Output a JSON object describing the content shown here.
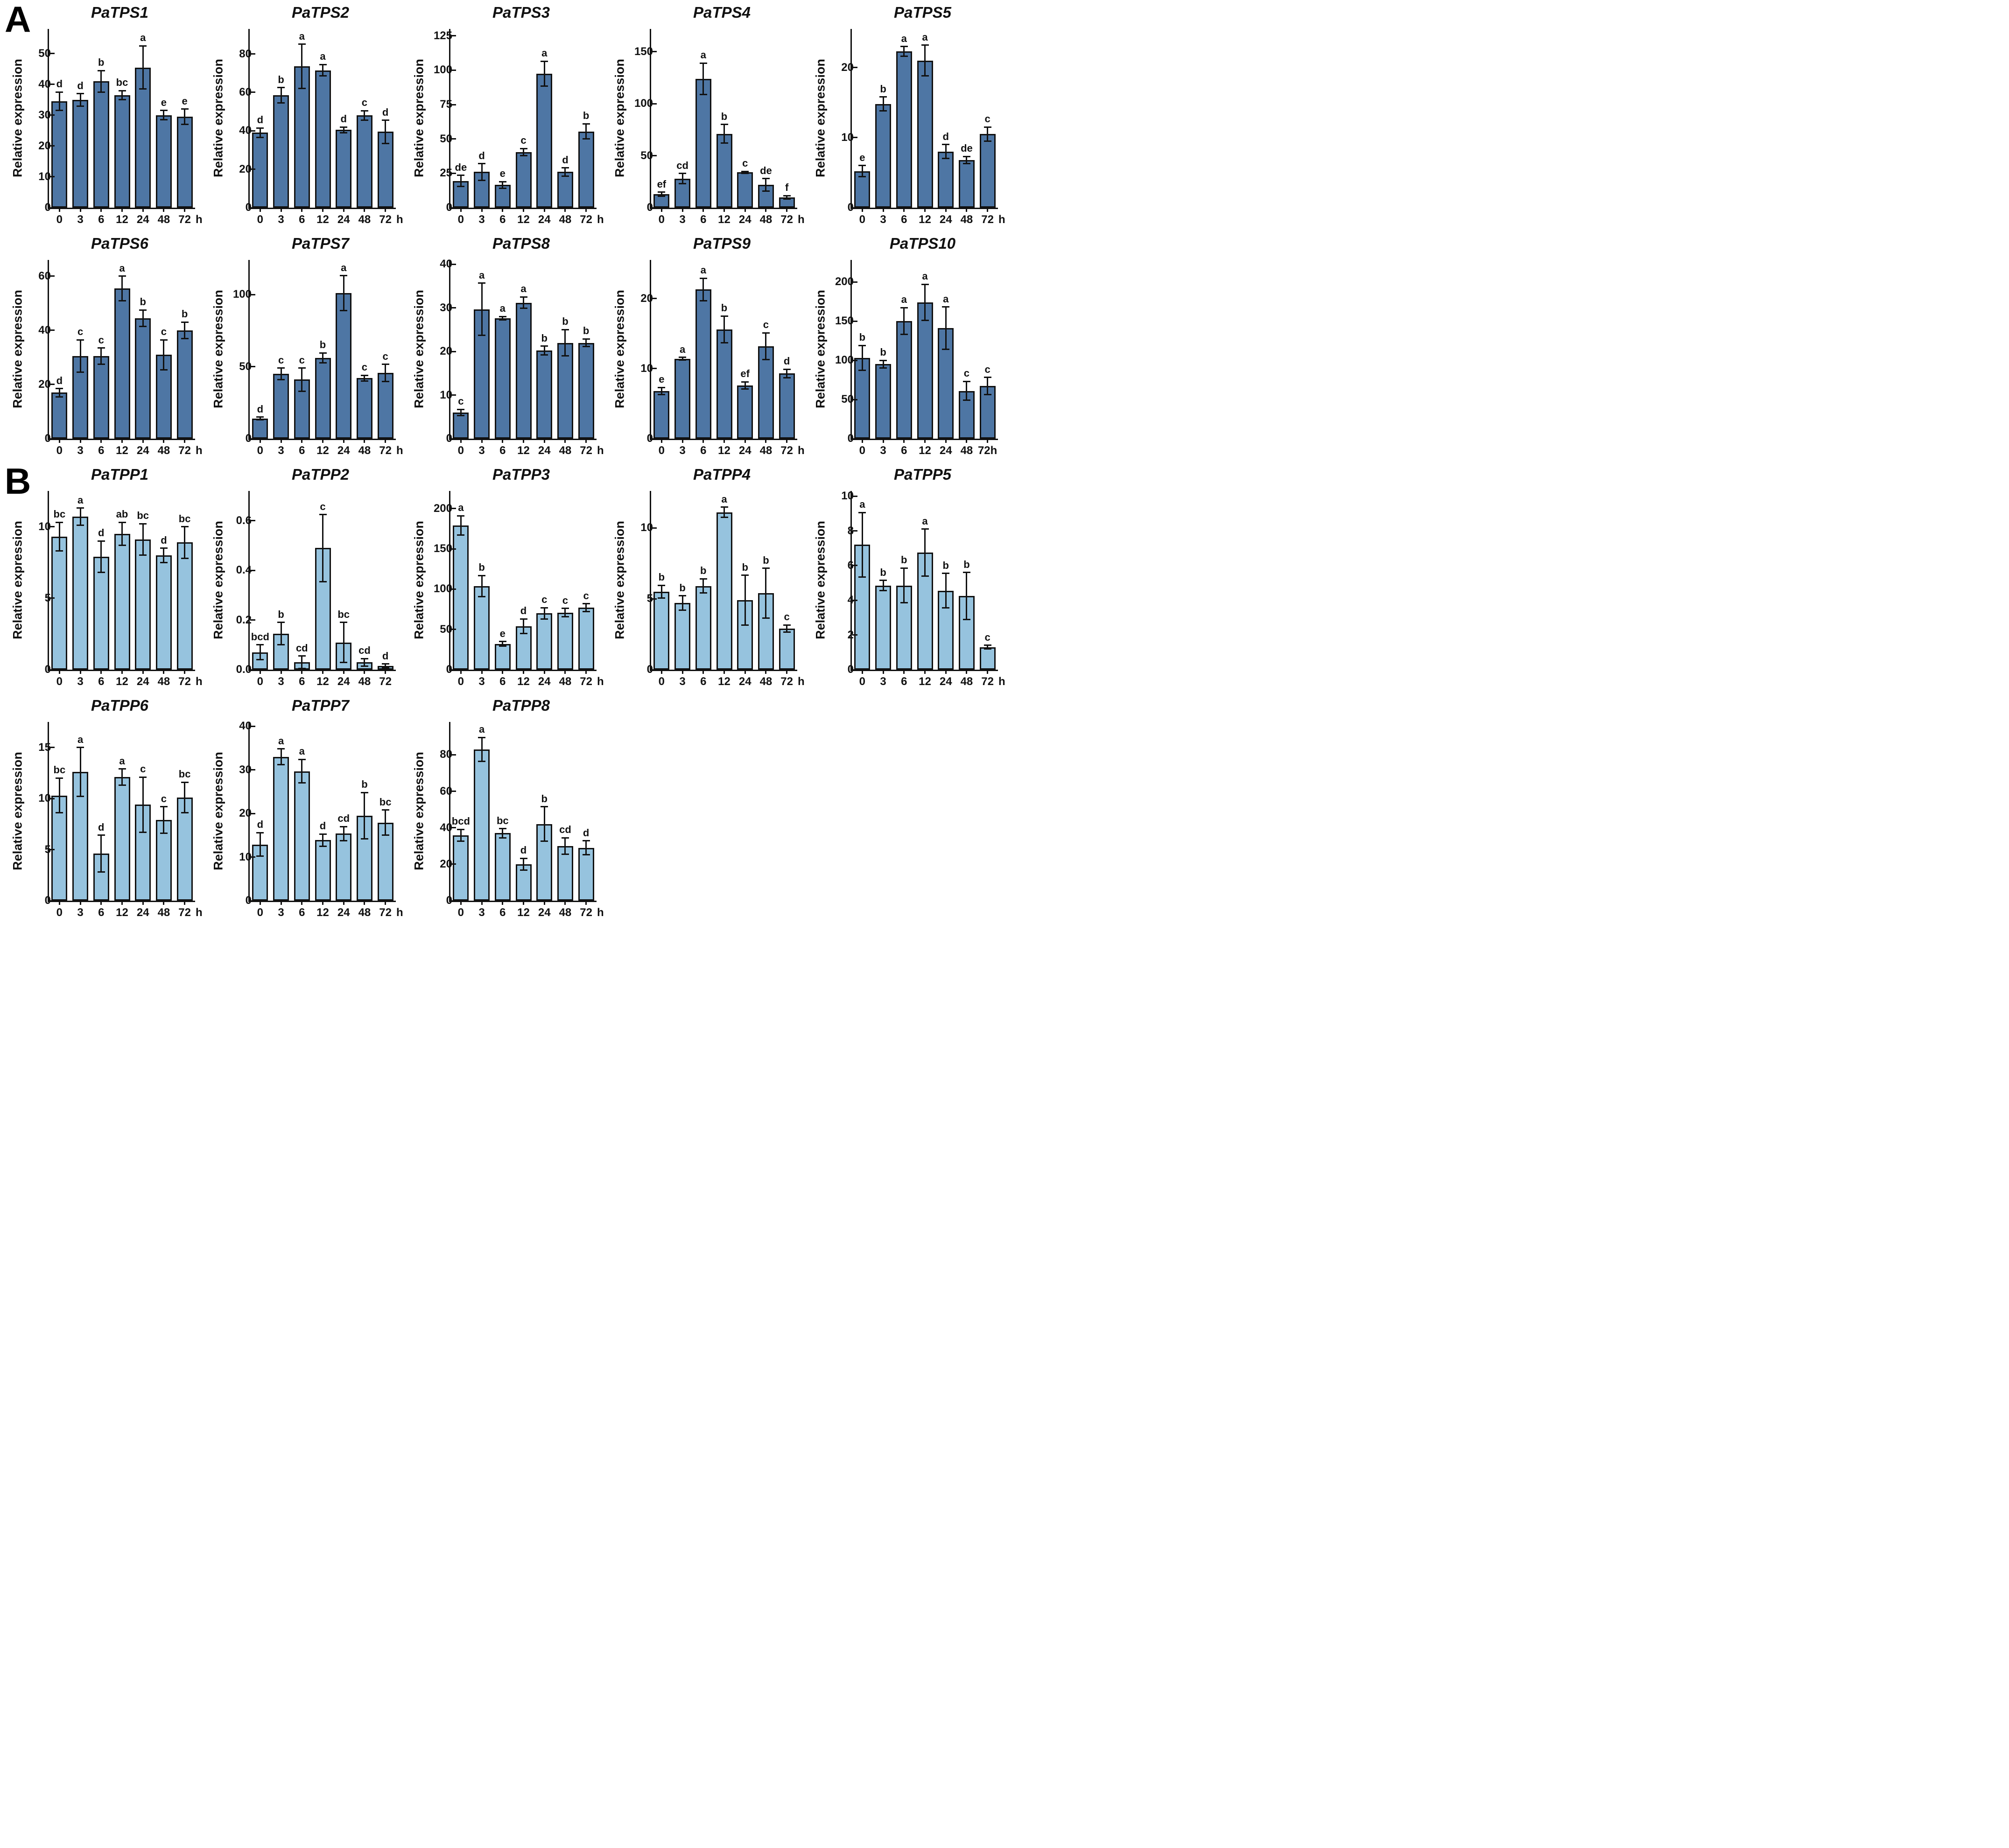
{
  "figure": {
    "panels": [
      {
        "label": "A"
      },
      {
        "label": "B"
      }
    ],
    "ylabel": "Relative expression",
    "bar_colors": {
      "A": "#4e76a4",
      "B": "#96c3de"
    },
    "axis_color": "#111111"
  },
  "chart_data": [
    {
      "id": "PaTPS1",
      "panel": "A",
      "type": "bar",
      "title": "PaTPS1",
      "ylabel": "Relative expression",
      "categories": [
        "0",
        "3",
        "6",
        "12",
        "24",
        "48",
        "72"
      ],
      "x_suffix": "h",
      "values": [
        34.5,
        35,
        41,
        36.5,
        45.5,
        30,
        29.5
      ],
      "errors": [
        3,
        2,
        3.5,
        1.5,
        7,
        1.5,
        2.5
      ],
      "sig_letters": [
        "d",
        "d",
        "b",
        "bc",
        "a",
        "e",
        "e"
      ],
      "ytick_labels": [
        "0",
        "10",
        "20",
        "30",
        "40",
        "50"
      ],
      "ylim": [
        0,
        58
      ],
      "bar_color": "#4e76a4"
    },
    {
      "id": "PaTPS2",
      "panel": "A",
      "type": "bar",
      "title": "PaTPS2",
      "ylabel": "Relative expression",
      "categories": [
        "0",
        "3",
        "6",
        "12",
        "24",
        "48",
        "72"
      ],
      "x_suffix": "h",
      "values": [
        39,
        58.5,
        73.5,
        71.5,
        40.5,
        48,
        39.5
      ],
      "errors": [
        2.5,
        4,
        11.5,
        3,
        1.5,
        2.5,
        6
      ],
      "sig_letters": [
        "d",
        "b",
        "a",
        "a",
        "d",
        "c",
        "d"
      ],
      "ytick_labels": [
        "0",
        "20",
        "40",
        "60",
        "80"
      ],
      "ylim": [
        0,
        93
      ],
      "bar_color": "#4e76a4"
    },
    {
      "id": "PaTPS3",
      "panel": "A",
      "type": "bar",
      "title": "PaTPS3",
      "ylabel": "Relative expression",
      "categories": [
        "0",
        "3",
        "6",
        "12",
        "24",
        "48",
        "72"
      ],
      "x_suffix": "h",
      "values": [
        19.5,
        26,
        16.5,
        40.5,
        97.5,
        26,
        55.5
      ],
      "errors": [
        4,
        6,
        2.5,
        2.5,
        9,
        3,
        5.5
      ],
      "sig_letters": [
        "de",
        "d",
        "e",
        "c",
        "a",
        "d",
        "b"
      ],
      "ytick_labels": [
        "0",
        "25",
        "50",
        "75",
        "100",
        "125"
      ],
      "ylim": [
        0,
        130
      ],
      "bar_color": "#4e76a4"
    },
    {
      "id": "PaTPS4",
      "panel": "A",
      "type": "bar",
      "title": "PaTPS4",
      "ylabel": "Relative expression",
      "categories": [
        "0",
        "3",
        "6",
        "12",
        "24",
        "48",
        "72"
      ],
      "x_suffix": "h",
      "values": [
        13,
        28,
        124,
        71,
        34,
        22,
        10
      ],
      "errors": [
        2,
        5,
        15,
        9,
        1,
        6,
        1.5
      ],
      "sig_letters": [
        "ef",
        "cd",
        "a",
        "b",
        "c",
        "de",
        "f"
      ],
      "ytick_labels": [
        "0",
        "50",
        "100",
        "150"
      ],
      "ylim": [
        0,
        172
      ],
      "bar_color": "#4e76a4"
    },
    {
      "id": "PaTPS5",
      "panel": "A",
      "type": "bar",
      "title": "PaTPS5",
      "ylabel": "Relative expression",
      "categories": [
        "0",
        "3",
        "6",
        "12",
        "24",
        "48",
        "72"
      ],
      "x_suffix": "h",
      "values": [
        5.2,
        14.8,
        22.3,
        21,
        8,
        6.8,
        10.5
      ],
      "errors": [
        0.8,
        1,
        0.7,
        2.2,
        1,
        0.5,
        1
      ],
      "sig_letters": [
        "e",
        "b",
        "a",
        "a",
        "d",
        "de",
        "c"
      ],
      "ytick_labels": [
        "0",
        "10",
        "20"
      ],
      "ylim": [
        0,
        25.5
      ],
      "bar_color": "#4e76a4"
    },
    {
      "id": "PaTPS6",
      "panel": "A",
      "type": "bar",
      "title": "PaTPS6",
      "ylabel": "Relative expression",
      "categories": [
        "0",
        "3",
        "6",
        "12",
        "24",
        "48",
        "72"
      ],
      "x_suffix": "h",
      "values": [
        17,
        30.5,
        30.5,
        55.5,
        44.5,
        31,
        40
      ],
      "errors": [
        1.5,
        6,
        3,
        4.5,
        3,
        5.5,
        3
      ],
      "sig_letters": [
        "d",
        "c",
        "c",
        "a",
        "b",
        "c",
        "b"
      ],
      "ytick_labels": [
        "0",
        "20",
        "40",
        "60"
      ],
      "ylim": [
        0,
        66
      ],
      "bar_color": "#4e76a4"
    },
    {
      "id": "PaTPS7",
      "panel": "A",
      "type": "bar",
      "title": "PaTPS7",
      "ylabel": "Relative expression",
      "categories": [
        "0",
        "3",
        "6",
        "12",
        "24",
        "48",
        "72"
      ],
      "x_suffix": "h",
      "values": [
        14,
        45,
        41,
        56,
        101,
        42,
        45.5
      ],
      "errors": [
        1,
        4,
        8,
        3.5,
        12,
        2,
        6
      ],
      "sig_letters": [
        "d",
        "c",
        "c",
        "b",
        "a",
        "c",
        "c"
      ],
      "ytick_labels": [
        "0",
        "50",
        "100"
      ],
      "ylim": [
        0,
        124
      ],
      "bar_color": "#4e76a4"
    },
    {
      "id": "PaTPS8",
      "panel": "A",
      "type": "bar",
      "title": "PaTPS8",
      "ylabel": "Relative expression",
      "categories": [
        "0",
        "3",
        "6",
        "12",
        "24",
        "48",
        "72"
      ],
      "x_suffix": "h",
      "values": [
        6,
        29.7,
        27.6,
        31.2,
        20.2,
        22,
        22
      ],
      "errors": [
        0.7,
        6,
        0.4,
        1.3,
        1,
        3,
        0.9
      ],
      "sig_letters": [
        "c",
        "a",
        "a",
        "a",
        "b",
        "b",
        "b"
      ],
      "ytick_labels": [
        "0",
        "10",
        "20",
        "30",
        "40"
      ],
      "ylim": [
        0,
        41
      ],
      "bar_color": "#4e76a4"
    },
    {
      "id": "PaTPS9",
      "panel": "A",
      "type": "bar",
      "title": "PaTPS9",
      "ylabel": "Relative expression",
      "categories": [
        "0",
        "3",
        "6",
        "12",
        "24",
        "48",
        "72"
      ],
      "x_suffix": "h",
      "values": [
        6.8,
        11.4,
        21.3,
        15.6,
        7.6,
        13.2,
        9.3
      ],
      "errors": [
        0.5,
        0.2,
        1.6,
        1.9,
        0.5,
        1.9,
        0.6
      ],
      "sig_letters": [
        "e",
        "a",
        "a",
        "b",
        "ef",
        "c",
        "d"
      ],
      "ytick_labels": [
        "0",
        "10",
        "20"
      ],
      "ylim": [
        0,
        25.5
      ],
      "bar_color": "#4e76a4"
    },
    {
      "id": "PaTPS10",
      "panel": "A",
      "type": "bar",
      "title": "PaTPS10",
      "ylabel": "Relative expression",
      "categories": [
        "0",
        "3",
        "6",
        "12",
        "24",
        "48",
        "72h"
      ],
      "x_suffix": "",
      "values": [
        103,
        95,
        150,
        174,
        141,
        61,
        67
      ],
      "errors": [
        16,
        5,
        17,
        23,
        27,
        12,
        11
      ],
      "sig_letters": [
        "b",
        "b",
        "a",
        "a",
        "a",
        "c",
        "c"
      ],
      "ytick_labels": [
        "0",
        "50",
        "100",
        "150",
        "200"
      ],
      "ylim": [
        0,
        228
      ],
      "bar_color": "#4e76a4"
    },
    {
      "id": "PaTPP1",
      "panel": "B",
      "type": "bar",
      "title": "PaTPP1",
      "ylabel": "Relative expression",
      "categories": [
        "0",
        "3",
        "6",
        "12",
        "24",
        "48",
        "72"
      ],
      "x_suffix": "h",
      "values": [
        9.3,
        10.7,
        7.9,
        9.5,
        9.1,
        8,
        8.9
      ],
      "errors": [
        1,
        0.6,
        1.1,
        0.8,
        1.1,
        0.5,
        1.1
      ],
      "sig_letters": [
        "bc",
        "a",
        "d",
        "ab",
        "bc",
        "d",
        "bc"
      ],
      "ytick_labels": [
        "0",
        "5",
        "10"
      ],
      "ylim": [
        0,
        12.5
      ],
      "bar_color": "#96c3de"
    },
    {
      "id": "PaTPP2",
      "panel": "B",
      "type": "bar",
      "title": "PaTPP2",
      "ylabel": "Relative expression",
      "categories": [
        "0",
        "3",
        "6",
        "12",
        "24",
        "48",
        "72"
      ],
      "x_suffix": "",
      "values": [
        0.07,
        0.145,
        0.03,
        0.49,
        0.11,
        0.03,
        0.015
      ],
      "errors": [
        0.03,
        0.045,
        0.025,
        0.135,
        0.08,
        0.015,
        0.008
      ],
      "sig_letters": [
        "bcd",
        "b",
        "cd",
        "c",
        "bc",
        "cd",
        "d"
      ],
      "ytick_labels": [
        "0.0",
        "0.2",
        "0.4",
        "0.6"
      ],
      "ylim": [
        0,
        0.72
      ],
      "bar_color": "#96c3de"
    },
    {
      "id": "PaTPP3",
      "panel": "B",
      "type": "bar",
      "title": "PaTPP3",
      "ylabel": "Relative expression",
      "categories": [
        "0",
        "3",
        "6",
        "12",
        "24",
        "48",
        "72"
      ],
      "x_suffix": "h",
      "values": [
        179,
        104,
        32,
        54,
        70,
        71,
        77
      ],
      "errors": [
        12,
        13,
        3,
        9,
        7,
        5,
        5
      ],
      "sig_letters": [
        "a",
        "b",
        "e",
        "d",
        "c",
        "c",
        "c"
      ],
      "ytick_labels": [
        "0",
        "50",
        "100",
        "150",
        "200"
      ],
      "ylim": [
        0,
        222
      ],
      "bar_color": "#96c3de"
    },
    {
      "id": "PaTPP4",
      "panel": "B",
      "type": "bar",
      "title": "PaTPP4",
      "ylabel": "Relative expression",
      "categories": [
        "0",
        "3",
        "6",
        "12",
        "24",
        "48",
        "72"
      ],
      "x_suffix": "h",
      "values": [
        5.5,
        4.7,
        5.9,
        11.1,
        4.9,
        5.4,
        2.9
      ],
      "errors": [
        0.45,
        0.5,
        0.5,
        0.35,
        1.75,
        1.75,
        0.25
      ],
      "sig_letters": [
        "b",
        "b",
        "b",
        "a",
        "b",
        "b",
        "c"
      ],
      "ytick_labels": [
        "0",
        "5",
        "10"
      ],
      "ylim": [
        0,
        12.6
      ],
      "bar_color": "#96c3de"
    },
    {
      "id": "PaTPP5",
      "panel": "B",
      "type": "bar",
      "title": "PaTPP5",
      "ylabel": "Relative expression",
      "categories": [
        "0",
        "3",
        "6",
        "12",
        "24",
        "48",
        "72"
      ],
      "x_suffix": "h",
      "values": [
        7.2,
        4.85,
        4.85,
        6.75,
        4.55,
        4.25,
        1.3
      ],
      "errors": [
        1.85,
        0.3,
        1,
        1.35,
        1,
        1.35,
        0.1
      ],
      "sig_letters": [
        "a",
        "b",
        "b",
        "a",
        "b",
        "b",
        "c"
      ],
      "ytick_labels": [
        "0",
        "2",
        "4",
        "6",
        "8",
        "10"
      ],
      "ylim": [
        0,
        10.3
      ],
      "bar_color": "#96c3de"
    },
    {
      "id": "PaTPP6",
      "panel": "B",
      "type": "bar",
      "title": "PaTPP6",
      "ylabel": "Relative expression",
      "categories": [
        "0",
        "3",
        "6",
        "12",
        "24",
        "48",
        "72"
      ],
      "x_suffix": "h",
      "values": [
        10.3,
        12.6,
        4.6,
        12.1,
        9.4,
        7.9,
        10.1
      ],
      "errors": [
        1.7,
        2.4,
        1.8,
        0.8,
        2.7,
        1.3,
        1.5
      ],
      "sig_letters": [
        "bc",
        "a",
        "d",
        "a",
        "c",
        "c",
        "bc"
      ],
      "ytick_labels": [
        "0",
        "5",
        "10",
        "15"
      ],
      "ylim": [
        0,
        17.5
      ],
      "bar_color": "#96c3de"
    },
    {
      "id": "PaTPP7",
      "panel": "B",
      "type": "bar",
      "title": "PaTPP7",
      "ylabel": "Relative expression",
      "categories": [
        "0",
        "3",
        "6",
        "12",
        "24",
        "48",
        "72"
      ],
      "x_suffix": "h",
      "values": [
        12.9,
        33,
        29.7,
        13.9,
        15.4,
        19.5,
        17.9
      ],
      "errors": [
        2.7,
        1.8,
        2.7,
        1.4,
        1.6,
        5.3,
        2.9
      ],
      "sig_letters": [
        "d",
        "a",
        "a",
        "d",
        "cd",
        "b",
        "bc"
      ],
      "ytick_labels": [
        "0",
        "10",
        "20",
        "30",
        "40"
      ],
      "ylim": [
        0,
        41
      ],
      "bar_color": "#96c3de"
    },
    {
      "id": "PaTPP8",
      "panel": "B",
      "type": "bar",
      "title": "PaTPP8",
      "ylabel": "Relative expression",
      "categories": [
        "0",
        "3",
        "6",
        "12",
        "24",
        "48",
        "72"
      ],
      "x_suffix": "h",
      "values": [
        35.8,
        83,
        37,
        20,
        42,
        30,
        29
      ],
      "errors": [
        3.3,
        6.5,
        2.5,
        3.2,
        9.5,
        4.5,
        3.8
      ],
      "sig_letters": [
        "bcd",
        "a",
        "bc",
        "d",
        "b",
        "cd",
        "d"
      ],
      "ytick_labels": [
        "0",
        "20",
        "40",
        "60",
        "80"
      ],
      "ylim": [
        0,
        98
      ],
      "bar_color": "#96c3de"
    }
  ]
}
